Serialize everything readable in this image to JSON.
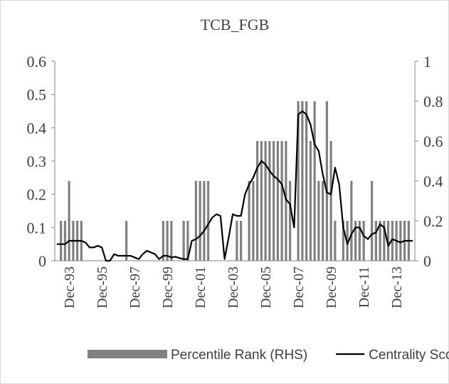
{
  "chart_data": {
    "type": "combo",
    "title": "TCB_FGB",
    "categories": [
      null,
      null,
      null,
      "Dec-93",
      null,
      null,
      null,
      null,
      null,
      null,
      null,
      "Dec-95",
      null,
      null,
      null,
      null,
      null,
      null,
      null,
      "Dec-97",
      null,
      null,
      null,
      null,
      null,
      null,
      null,
      "Dec-99",
      null,
      null,
      null,
      null,
      null,
      null,
      null,
      "Dec-01",
      null,
      null,
      null,
      null,
      null,
      null,
      null,
      "Dec-03",
      null,
      null,
      null,
      null,
      null,
      null,
      null,
      "Dec-05",
      null,
      null,
      null,
      null,
      null,
      null,
      null,
      "Dec-07",
      null,
      null,
      null,
      null,
      null,
      null,
      null,
      "Dec-09",
      null,
      null,
      null,
      null,
      null,
      null,
      null,
      "Dec-11",
      null,
      null,
      null,
      null,
      null,
      null,
      null,
      "Dec-13",
      null,
      null,
      null,
      null
    ],
    "series": [
      {
        "name": "Percentile Rank (RHS)",
        "type": "bar",
        "axis": "y2",
        "color": "#808080",
        "values": [
          0,
          0.2,
          0.2,
          0.4,
          0.2,
          0.2,
          0.2,
          0,
          0,
          0,
          0,
          0,
          0,
          0,
          0,
          0,
          0,
          0.2,
          0,
          0,
          0,
          0,
          0,
          0,
          0,
          0,
          0.2,
          0.2,
          0.2,
          0,
          0,
          0.2,
          0.2,
          0,
          0.4,
          0.4,
          0.4,
          0.4,
          0,
          0,
          0,
          0,
          0,
          0,
          0.2,
          0.2,
          0,
          0.4,
          0.4,
          0.6,
          0.6,
          0.6,
          0.6,
          0.6,
          0.6,
          0.6,
          0.6,
          0.4,
          0,
          0.8,
          0.8,
          0.8,
          0.6,
          0.8,
          0.4,
          0.4,
          0.8,
          0.6,
          0.2,
          0,
          0.2,
          0.2,
          0.4,
          0.2,
          0.2,
          0.2,
          0,
          0.4,
          0.2,
          0.2,
          0.2,
          0.2,
          0.2,
          0.2,
          0.2,
          0.2,
          0.2,
          0
        ]
      },
      {
        "name": "Centrality Score",
        "type": "line",
        "axis": "y",
        "color": "#000000",
        "values": [
          0.05,
          0.05,
          0.05,
          0.06,
          0.06,
          0.06,
          0.06,
          0.055,
          0.04,
          0.04,
          0.045,
          0.04,
          0,
          0,
          0.02,
          0.015,
          0.015,
          0.015,
          0.015,
          0.01,
          0.005,
          0.02,
          0.03,
          0.025,
          0.02,
          0.005,
          0.015,
          0.015,
          0.01,
          0.012,
          0.008,
          0.005,
          0.005,
          0.06,
          0.065,
          0.075,
          0.09,
          0.11,
          0.13,
          0.14,
          0.135,
          0.005,
          0.07,
          0.14,
          0.135,
          0.135,
          0.2,
          0.23,
          0.25,
          0.28,
          0.3,
          0.29,
          0.27,
          0.255,
          0.245,
          0.23,
          0.185,
          0.17,
          0.1,
          0.44,
          0.45,
          0.44,
          0.41,
          0.35,
          0.33,
          0.26,
          0.205,
          0.2,
          0.28,
          0.23,
          0.1,
          0.05,
          0.08,
          0.1,
          0.1,
          0.075,
          0.065,
          0.08,
          0.085,
          0.11,
          0.1,
          0.045,
          0.065,
          0.06,
          0.055,
          0.06,
          0.06,
          0.06
        ]
      }
    ],
    "ylim": [
      0,
      0.6
    ],
    "yticks": [
      0,
      0.1,
      0.2,
      0.3,
      0.4,
      0.5,
      0.6
    ],
    "y2lim": [
      0,
      1
    ],
    "y2ticks": [
      0,
      0.2,
      0.4,
      0.6,
      0.8,
      1
    ],
    "legend": "bottom",
    "grid": false
  }
}
